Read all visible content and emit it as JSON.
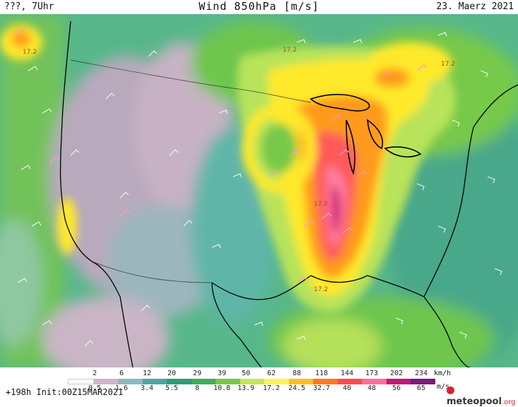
{
  "header": {
    "left": "???, 7Uhr",
    "title": "Wind 850hPa [m/s]",
    "date": "23. Maerz 2021"
  },
  "map": {
    "contour_labels": [
      "17.2",
      "17.2",
      "17.2",
      "17.2",
      "17.2"
    ],
    "colors": {
      "lowest": "#cdb7c6",
      "low": "#7fb6b5",
      "teal": "#3fa98a",
      "green": "#5cc04c",
      "lightgreen": "#b5e05a",
      "yellow": "#ffea2a",
      "orange": "#ff9a1a",
      "red": "#ff5555",
      "pink": "#ff7fa0",
      "magenta": "#d4197a"
    }
  },
  "legend": {
    "kmh_values": [
      "2",
      "6",
      "12",
      "20",
      "29",
      "39",
      "50",
      "62",
      "88",
      "118",
      "144",
      "173",
      "202",
      "234"
    ],
    "kmh_unit": "km/h",
    "ms_values": [
      "0.5",
      "1.6",
      "3.4",
      "5.5",
      "8",
      "10.8",
      "13.9",
      "17.2",
      "24.5",
      "32.7",
      "40",
      "48",
      "56",
      "65"
    ],
    "ms_unit": "m/s",
    "bar_colors": [
      "#ffffff",
      "#cdb7c6",
      "#8fb8bf",
      "#4fa6a0",
      "#2e9a7c",
      "#3fae57",
      "#77c94a",
      "#c6e65a",
      "#fff25a",
      "#ffbe22",
      "#ff7a20",
      "#ff4a4a",
      "#ff6f9a",
      "#c2187a",
      "#7a1a7a"
    ]
  },
  "footer": {
    "run": "+198h Init:00Z15MAR2021"
  },
  "logo": {
    "name": "meteopool",
    "suffix": ".org"
  }
}
